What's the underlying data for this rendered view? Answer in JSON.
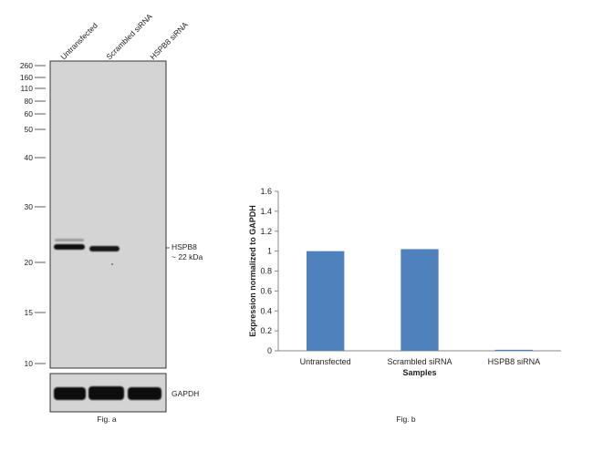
{
  "fig_a": {
    "lanes": [
      "Untransfected",
      "Scrambled siRNA",
      "HSPB8 siRNA"
    ],
    "mw_markers": [
      "260",
      "160",
      "110",
      "80",
      "60",
      "50",
      "40",
      "30",
      "20",
      "15",
      "10"
    ],
    "band_label_line1": "HSPB8",
    "band_label_line2": "~ 22 kDa",
    "loading_label": "GAPDH",
    "caption": "Fig. a"
  },
  "fig_b": {
    "caption": "Fig. b"
  },
  "chart_data": {
    "type": "bar",
    "categories": [
      "Untransfected",
      "Scrambled siRNA",
      "HSPB8 siRNA"
    ],
    "values": [
      1.0,
      1.02,
      0.01
    ],
    "title": "",
    "xlabel": "Samples",
    "ylabel": "Expression normalized to GAPDH",
    "ylim": [
      0,
      1.6
    ],
    "yticks": [
      "0",
      "0.2",
      "0.4",
      "0.6",
      "0.8",
      "1",
      "1.2",
      "1.4",
      "1.6"
    ],
    "grid": false,
    "bar_color": "#4f81bd"
  }
}
